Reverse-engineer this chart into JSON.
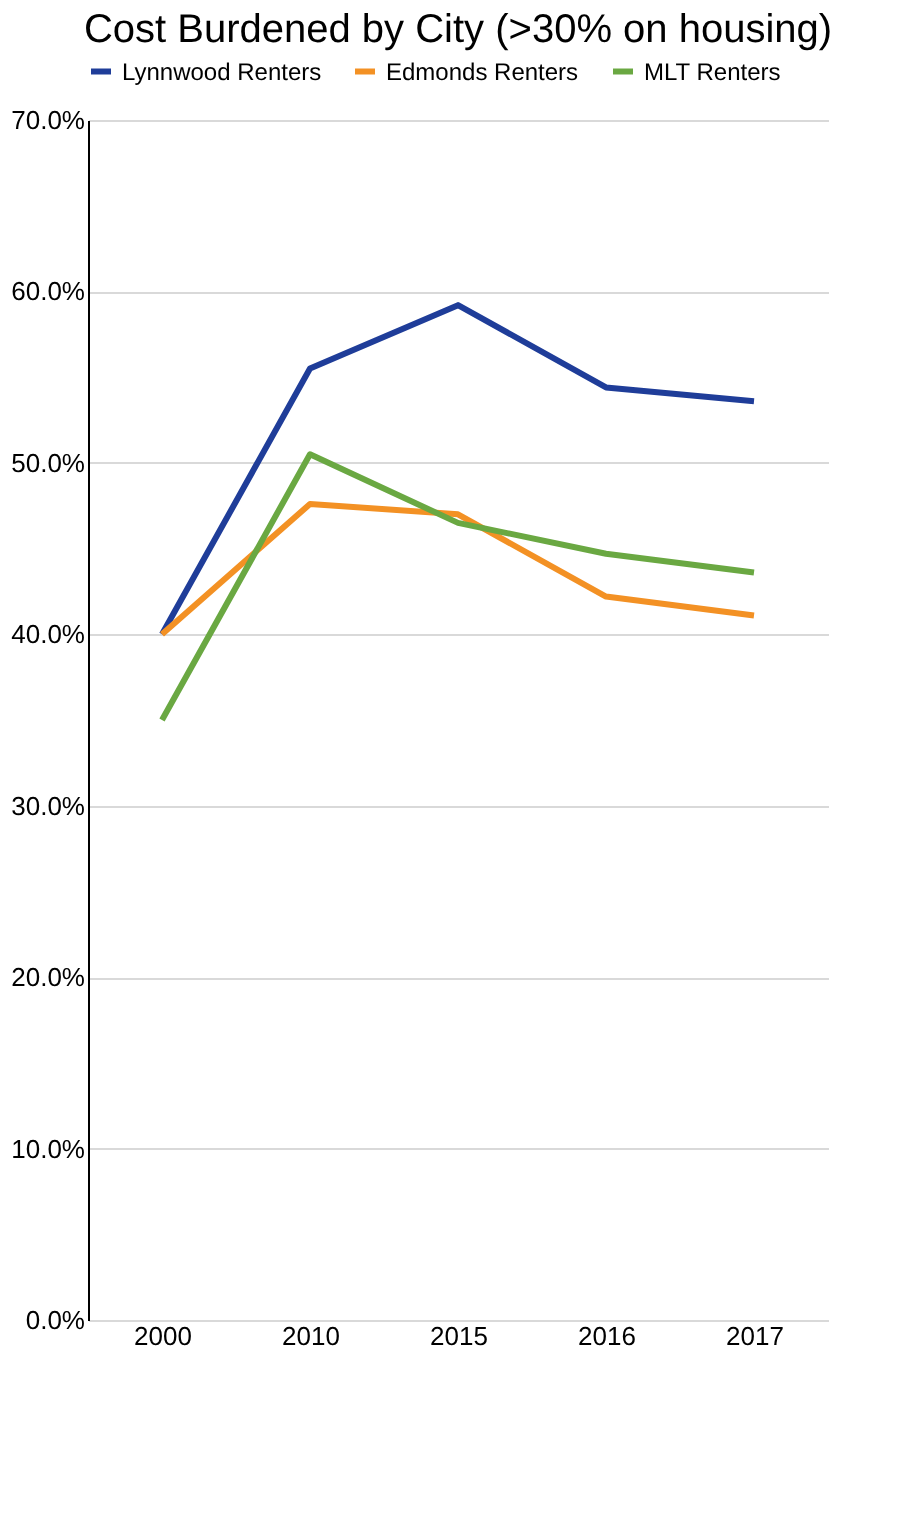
{
  "chart_data": {
    "type": "line",
    "title": "Cost Burdened by City (>30% on housing)",
    "categories": [
      "2000",
      "2010",
      "2015",
      "2016",
      "2017"
    ],
    "series": [
      {
        "name": "Lynnwood Renters",
        "color": "#1f3d99",
        "values": [
          40.0,
          55.5,
          59.2,
          54.4,
          53.6
        ]
      },
      {
        "name": "Edmonds Renters",
        "color": "#f39124",
        "values": [
          40.0,
          47.6,
          47.0,
          42.2,
          41.1
        ]
      },
      {
        "name": "MLT Renters",
        "color": "#6aa842",
        "values": [
          35.0,
          50.5,
          46.5,
          44.7,
          43.6
        ]
      }
    ],
    "ylim": [
      0,
      70
    ],
    "yticks": [
      {
        "value": 0,
        "label": "0.0%"
      },
      {
        "value": 10,
        "label": "10.0%"
      },
      {
        "value": 20,
        "label": "20.0%"
      },
      {
        "value": 30,
        "label": "30.0%"
      },
      {
        "value": 40,
        "label": "40.0%"
      },
      {
        "value": 50,
        "label": "50.0%"
      },
      {
        "value": 60,
        "label": "60.0%"
      },
      {
        "value": 70,
        "label": "70.0%"
      }
    ],
    "grid": "y",
    "legend": "top",
    "marker": "none",
    "line_style": "solid"
  }
}
